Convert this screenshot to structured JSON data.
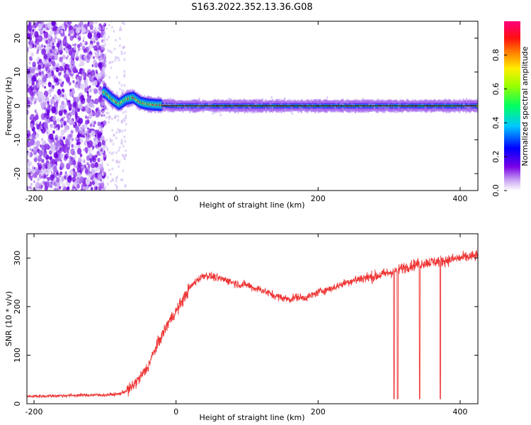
{
  "title": "S163.2022.352.13.36.G08",
  "colors": {
    "snr_line": "#ee3333",
    "background": "#ffffff",
    "axis": "#000000"
  },
  "chart_data": [
    {
      "type": "heatmap",
      "xlabel": "Height of straight line (km)",
      "ylabel": "Frequency (Hz)",
      "xlim": [
        -210,
        425
      ],
      "ylim": [
        -25,
        25
      ],
      "xticks": [
        -200,
        0,
        200,
        400
      ],
      "yticks": [
        -20,
        -10,
        0,
        10,
        20
      ],
      "colorbar": {
        "label": "Normalized spectral amplitude",
        "ticks": [
          0.0,
          0.2,
          0.4,
          0.6,
          0.8
        ],
        "range": [
          0,
          1
        ]
      },
      "ridge": {
        "x": [
          -100,
          -90,
          -80,
          -70,
          -60,
          -50,
          -40,
          -30,
          -20,
          0,
          50,
          100,
          200,
          300,
          425
        ],
        "y": [
          4,
          2,
          0.5,
          2,
          2.5,
          1,
          0.5,
          0.3,
          0.2,
          0,
          0,
          0,
          0,
          0,
          0
        ]
      }
    },
    {
      "type": "line",
      "xlabel": "Height of straight line (km)",
      "ylabel": "SNR (10 * v/v)",
      "xlim": [
        -210,
        425
      ],
      "ylim": [
        0,
        350
      ],
      "xticks": [
        -200,
        0,
        200,
        400
      ],
      "yticks": [
        0,
        100,
        200,
        300
      ],
      "series": [
        {
          "x": [
            -210,
            -180,
            -150,
            -120,
            -100,
            -80,
            -65,
            -50,
            -40,
            -30,
            -20,
            -10,
            0,
            10,
            20,
            30,
            40,
            50,
            60,
            70,
            80,
            90,
            100,
            110,
            120,
            130,
            140,
            150,
            160,
            170,
            180,
            190,
            200,
            220,
            240,
            260,
            280,
            300,
            320,
            340,
            360,
            380,
            400,
            425
          ],
          "y": [
            15,
            16,
            17,
            18,
            18,
            20,
            30,
            55,
            75,
            110,
            140,
            170,
            190,
            215,
            240,
            255,
            265,
            262,
            258,
            255,
            250,
            245,
            245,
            238,
            235,
            228,
            222,
            218,
            215,
            220,
            218,
            222,
            230,
            238,
            250,
            258,
            262,
            270,
            280,
            288,
            292,
            295,
            300,
            305
          ]
        }
      ],
      "dropouts": [
        {
          "x": 307,
          "y": 10
        },
        {
          "x": 312,
          "y": 10
        },
        {
          "x": 343,
          "y": 10
        },
        {
          "x": 372,
          "y": 10
        }
      ]
    }
  ]
}
